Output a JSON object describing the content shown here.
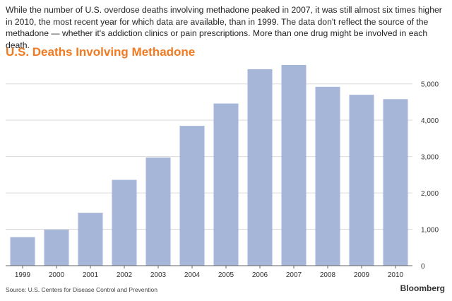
{
  "intro": "While the number of U.S. overdose deaths involving methadone peaked in 2007, it was still almost six times higher in 2010, the most recent year for which data are available, than in 1999. The data don't reflect the source of the methadone — whether it's addiction clinics or pain prescriptions. More than one drug might be involved in each death.",
  "source": "Source: U.S. Centers for Disease Control and Prevention",
  "brand": "Bloomberg",
  "colors": {
    "bar": "#a6b6d8",
    "title": "#f07a22",
    "grid": "#d9d9d9"
  },
  "chart_data": {
    "type": "bar",
    "title": "U.S. Deaths Involving Methadone",
    "xlabel": "",
    "ylabel": "",
    "categories": [
      "1999",
      "2000",
      "2001",
      "2002",
      "2003",
      "2004",
      "2005",
      "2006",
      "2007",
      "2008",
      "2009",
      "2010"
    ],
    "values": [
      785,
      990,
      1455,
      2360,
      2975,
      3845,
      4460,
      5405,
      5520,
      4920,
      4700,
      4580
    ],
    "ylim": [
      0,
      5500
    ],
    "yticks": [
      0,
      1000,
      2000,
      3000,
      4000,
      5000
    ],
    "ytick_labels": [
      "0",
      "1,000",
      "2,000",
      "3,000",
      "4,000",
      "5,000"
    ],
    "grid": true
  }
}
